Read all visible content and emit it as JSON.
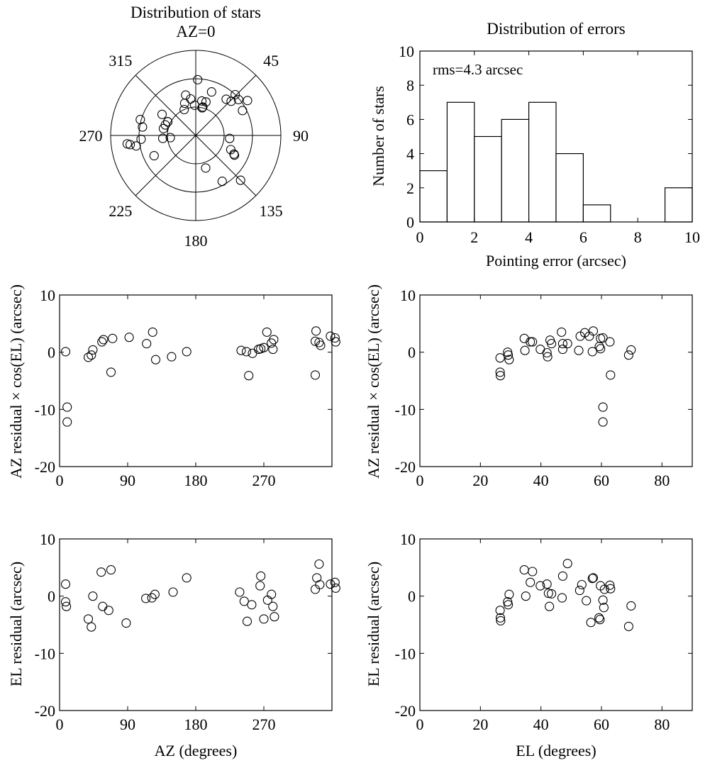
{
  "chart_data": [
    {
      "type": "scatter",
      "subtype": "polar",
      "title": "Distribution of stars",
      "top_label": "AZ=0",
      "angle_labels": [
        {
          "deg": 45,
          "text": "45"
        },
        {
          "deg": 90,
          "text": "90"
        },
        {
          "deg": 135,
          "text": "135"
        },
        {
          "deg": 180,
          "text": "180"
        },
        {
          "deg": 225,
          "text": "225"
        },
        {
          "deg": 270,
          "text": "270"
        },
        {
          "deg": 315,
          "text": "315"
        }
      ],
      "radial_rings": [
        30,
        60
      ],
      "radial_max": 90,
      "points_az_zenith": [
        [
          2,
          59
        ],
        [
          10,
          37
        ],
        [
          13,
          30
        ],
        [
          13,
          30
        ],
        [
          14,
          31
        ],
        [
          20,
          49
        ],
        [
          17,
          37
        ],
        [
          358,
          32
        ],
        [
          352,
          39
        ],
        [
          346,
          44
        ],
        [
          336,
          30
        ],
        [
          341,
          36
        ],
        [
          44,
          60
        ],
        [
          40,
          50
        ],
        [
          46,
          52
        ],
        [
          50,
          59
        ],
        [
          56,
          66
        ],
        [
          62,
          56
        ],
        [
          95,
          36
        ],
        [
          112,
          40
        ],
        [
          116,
          45
        ],
        [
          117,
          46
        ],
        [
          135,
          67
        ],
        [
          150,
          56
        ],
        [
          163,
          36
        ],
        [
          244,
          49
        ],
        [
          265,
          35
        ],
        [
          265,
          27
        ],
        [
          260,
          64
        ],
        [
          262,
          70
        ],
        [
          263,
          73
        ],
        [
          266,
          58
        ],
        [
          279,
          57
        ],
        [
          286,
          61
        ],
        [
          282,
          35
        ],
        [
          302,
          42
        ],
        [
          296,
          33
        ],
        [
          296,
          33
        ],
        [
          289,
          34
        ]
      ]
    },
    {
      "type": "bar",
      "subtype": "histogram",
      "title": "Distribution of errors",
      "annotation": "rms=4.3 arcsec",
      "xlabel": "Pointing error (arcsec)",
      "ylabel": "Number of stars",
      "xlim": [
        0,
        10
      ],
      "ylim": [
        0,
        10
      ],
      "xticks": [
        "0",
        "2",
        "4",
        "6",
        "8",
        "10"
      ],
      "yticks": [
        "0",
        "2",
        "4",
        "6",
        "8",
        "10"
      ],
      "bin_edges": [
        0,
        1,
        2,
        3,
        4,
        5,
        6,
        7,
        8,
        9,
        10
      ],
      "values": [
        3,
        7,
        5,
        6,
        7,
        4,
        1,
        0,
        0,
        2
      ]
    },
    {
      "type": "scatter",
      "title": "",
      "xlabel": "",
      "ylabel": "AZ residual × cos(EL) (arcsec)",
      "xlim": [
        0,
        360
      ],
      "ylim": [
        -20,
        10
      ],
      "xticks": [
        "0",
        "90",
        "180",
        "270"
      ],
      "yticks": [
        "-20",
        "-10",
        "0",
        "10"
      ],
      "points": [
        [
          8,
          0.1
        ],
        [
          10,
          -9.6
        ],
        [
          10,
          -12.2
        ],
        [
          38,
          -0.9
        ],
        [
          42,
          -0.5
        ],
        [
          44,
          0.4
        ],
        [
          56,
          1.8
        ],
        [
          58,
          2.2
        ],
        [
          68,
          -3.5
        ],
        [
          70,
          2.4
        ],
        [
          92,
          2.6
        ],
        [
          115,
          1.5
        ],
        [
          123,
          3.5
        ],
        [
          127,
          -1.3
        ],
        [
          148,
          -0.8
        ],
        [
          168,
          0.1
        ],
        [
          240,
          0.3
        ],
        [
          247,
          0.1
        ],
        [
          250,
          -4.1
        ],
        [
          255,
          -0.2
        ],
        [
          263,
          0.5
        ],
        [
          266,
          0.6
        ],
        [
          270,
          0.8
        ],
        [
          274,
          3.5
        ],
        [
          280,
          1.6
        ],
        [
          282,
          0.5
        ],
        [
          283,
          2.2
        ],
        [
          338,
          1.9
        ],
        [
          338,
          -4.0
        ],
        [
          339,
          3.7
        ],
        [
          343,
          1.7
        ],
        [
          345,
          1.2
        ],
        [
          358,
          2.8
        ],
        [
          364,
          2.5
        ],
        [
          365,
          1.8
        ]
      ]
    },
    {
      "type": "scatter",
      "title": "",
      "xlabel": "",
      "ylabel": "AZ residual × cos(EL) (arcsec)",
      "xlim": [
        0,
        90
      ],
      "ylim": [
        -20,
        10
      ],
      "xticks": [
        "0",
        "20",
        "40",
        "60",
        "80"
      ],
      "yticks": [
        "-20",
        "-10",
        "0",
        "10"
      ],
      "points": [
        [
          26.5,
          -1.0
        ],
        [
          26.5,
          -3.5
        ],
        [
          26.6,
          -4.1
        ],
        [
          29,
          0
        ],
        [
          29.2,
          -0.5
        ],
        [
          29.5,
          -1.3
        ],
        [
          34.5,
          2.4
        ],
        [
          34.7,
          0.3
        ],
        [
          36.5,
          1.8
        ],
        [
          37.2,
          1.8
        ],
        [
          39.8,
          0.5
        ],
        [
          42,
          -0.1
        ],
        [
          42.2,
          -0.8
        ],
        [
          43,
          2.1
        ],
        [
          43.5,
          1.5
        ],
        [
          46.8,
          3.5
        ],
        [
          47.2,
          0.5
        ],
        [
          47.2,
          1.5
        ],
        [
          48.8,
          1.5
        ],
        [
          52.5,
          0.3
        ],
        [
          53,
          2.8
        ],
        [
          54.5,
          3.4
        ],
        [
          56,
          2.8
        ],
        [
          57,
          0.1
        ],
        [
          57.3,
          3.7
        ],
        [
          59.3,
          1.0
        ],
        [
          59.7,
          2.4
        ],
        [
          59.7,
          0.6
        ],
        [
          60.5,
          -9.6
        ],
        [
          60.5,
          -12.2
        ],
        [
          60.5,
          2.5
        ],
        [
          62.8,
          1.8
        ],
        [
          63,
          -4.0
        ],
        [
          69,
          -0.5
        ],
        [
          69.8,
          0.4
        ]
      ]
    },
    {
      "type": "scatter",
      "title": "",
      "xlabel": "AZ (degrees)",
      "ylabel": "EL residual (arcsec)",
      "xlim": [
        0,
        360
      ],
      "ylim": [
        -20,
        10
      ],
      "xticks": [
        "0",
        "90",
        "180",
        "270"
      ],
      "yticks": [
        "-20",
        "-10",
        "0",
        "10"
      ],
      "points": [
        [
          8,
          2.1
        ],
        [
          8,
          -1.0
        ],
        [
          9,
          -1.8
        ],
        [
          38,
          -4.0
        ],
        [
          42,
          -5.4
        ],
        [
          44,
          0.0
        ],
        [
          55,
          4.2
        ],
        [
          57,
          -1.8
        ],
        [
          65,
          -2.5
        ],
        [
          68,
          4.6
        ],
        [
          88,
          -4.7
        ],
        [
          114,
          -0.4
        ],
        [
          122,
          -0.3
        ],
        [
          126,
          0.3
        ],
        [
          150,
          0.7
        ],
        [
          168,
          3.2
        ],
        [
          238,
          0.7
        ],
        [
          244,
          -0.9
        ],
        [
          248,
          -4.4
        ],
        [
          254,
          -1.5
        ],
        [
          265,
          1.8
        ],
        [
          266,
          3.5
        ],
        [
          270,
          -4.0
        ],
        [
          275,
          -0.7
        ],
        [
          280,
          0.3
        ],
        [
          282,
          -1.8
        ],
        [
          284,
          -3.6
        ],
        [
          338,
          1.2
        ],
        [
          340,
          3.2
        ],
        [
          343,
          5.6
        ],
        [
          344,
          2.0
        ],
        [
          358,
          2.1
        ],
        [
          364,
          2.4
        ],
        [
          365,
          1.4
        ]
      ]
    },
    {
      "type": "scatter",
      "title": "",
      "xlabel": "EL (degrees)",
      "ylabel": "EL residual (arcsec)",
      "xlim": [
        0,
        90
      ],
      "ylim": [
        -20,
        10
      ],
      "xticks": [
        "0",
        "20",
        "40",
        "60",
        "80"
      ],
      "yticks": [
        "-20",
        "-10",
        "0",
        "10"
      ],
      "points": [
        [
          26.5,
          -2.5
        ],
        [
          26.6,
          -3.8
        ],
        [
          26.7,
          -4.3
        ],
        [
          29,
          -1.0
        ],
        [
          29.2,
          -1.5
        ],
        [
          29.5,
          0.3
        ],
        [
          34.5,
          4.6
        ],
        [
          35,
          0
        ],
        [
          36.5,
          2.4
        ],
        [
          37.2,
          4.3
        ],
        [
          39.8,
          1.8
        ],
        [
          42,
          2.1
        ],
        [
          42.5,
          0.5
        ],
        [
          42.8,
          -1.8
        ],
        [
          43.5,
          0.4
        ],
        [
          47,
          -0.3
        ],
        [
          47.2,
          3.5
        ],
        [
          48.8,
          5.7
        ],
        [
          52.8,
          1.0
        ],
        [
          53.5,
          2.0
        ],
        [
          55,
          -0.8
        ],
        [
          56.5,
          -4.6
        ],
        [
          57,
          3.1
        ],
        [
          57.3,
          3.2
        ],
        [
          59.2,
          -3.8
        ],
        [
          59.5,
          -4.1
        ],
        [
          59.7,
          1.8
        ],
        [
          60.5,
          -0.7
        ],
        [
          60.8,
          -2.0
        ],
        [
          61,
          1.2
        ],
        [
          62.8,
          1.9
        ],
        [
          63,
          1.3
        ],
        [
          69,
          -5.3
        ],
        [
          69.8,
          -1.7
        ]
      ]
    }
  ]
}
